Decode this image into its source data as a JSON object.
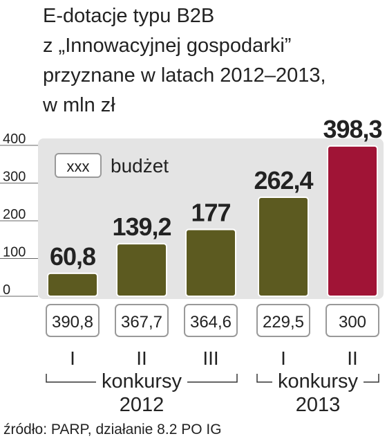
{
  "chart_data": {
    "type": "bar",
    "title": [
      "E-dotacje typu B2B",
      "z „Innowacyjnej gospodarki”",
      "przyznane w latach 2012–2013,",
      "w mln zł"
    ],
    "groups": [
      {
        "name": "konkursy",
        "year": "2012",
        "categories": [
          "I",
          "II",
          "III"
        ]
      },
      {
        "name": "konkursy",
        "year": "2013",
        "categories": [
          "I",
          "II"
        ]
      }
    ],
    "values": [
      60.8,
      139.2,
      177,
      262.4,
      398.3
    ],
    "value_labels": [
      "60,8",
      "139,2",
      "177",
      "262,4",
      "398,3"
    ],
    "colors": [
      "#5c5a20",
      "#5c5a20",
      "#5c5a20",
      "#5c5a20",
      "#a01436"
    ],
    "budget": {
      "name": "budżet",
      "legend_sample": "xxx",
      "values": [
        390.8,
        367.7,
        364.6,
        229.5,
        300
      ],
      "value_labels": [
        "390,8",
        "367,7",
        "364,6",
        "229,5",
        "300"
      ]
    },
    "ylim": [
      0,
      400
    ],
    "yticks": [
      0,
      100,
      200,
      300,
      400
    ],
    "source": "źródło: PARP, działanie 8.2 PO IG"
  }
}
